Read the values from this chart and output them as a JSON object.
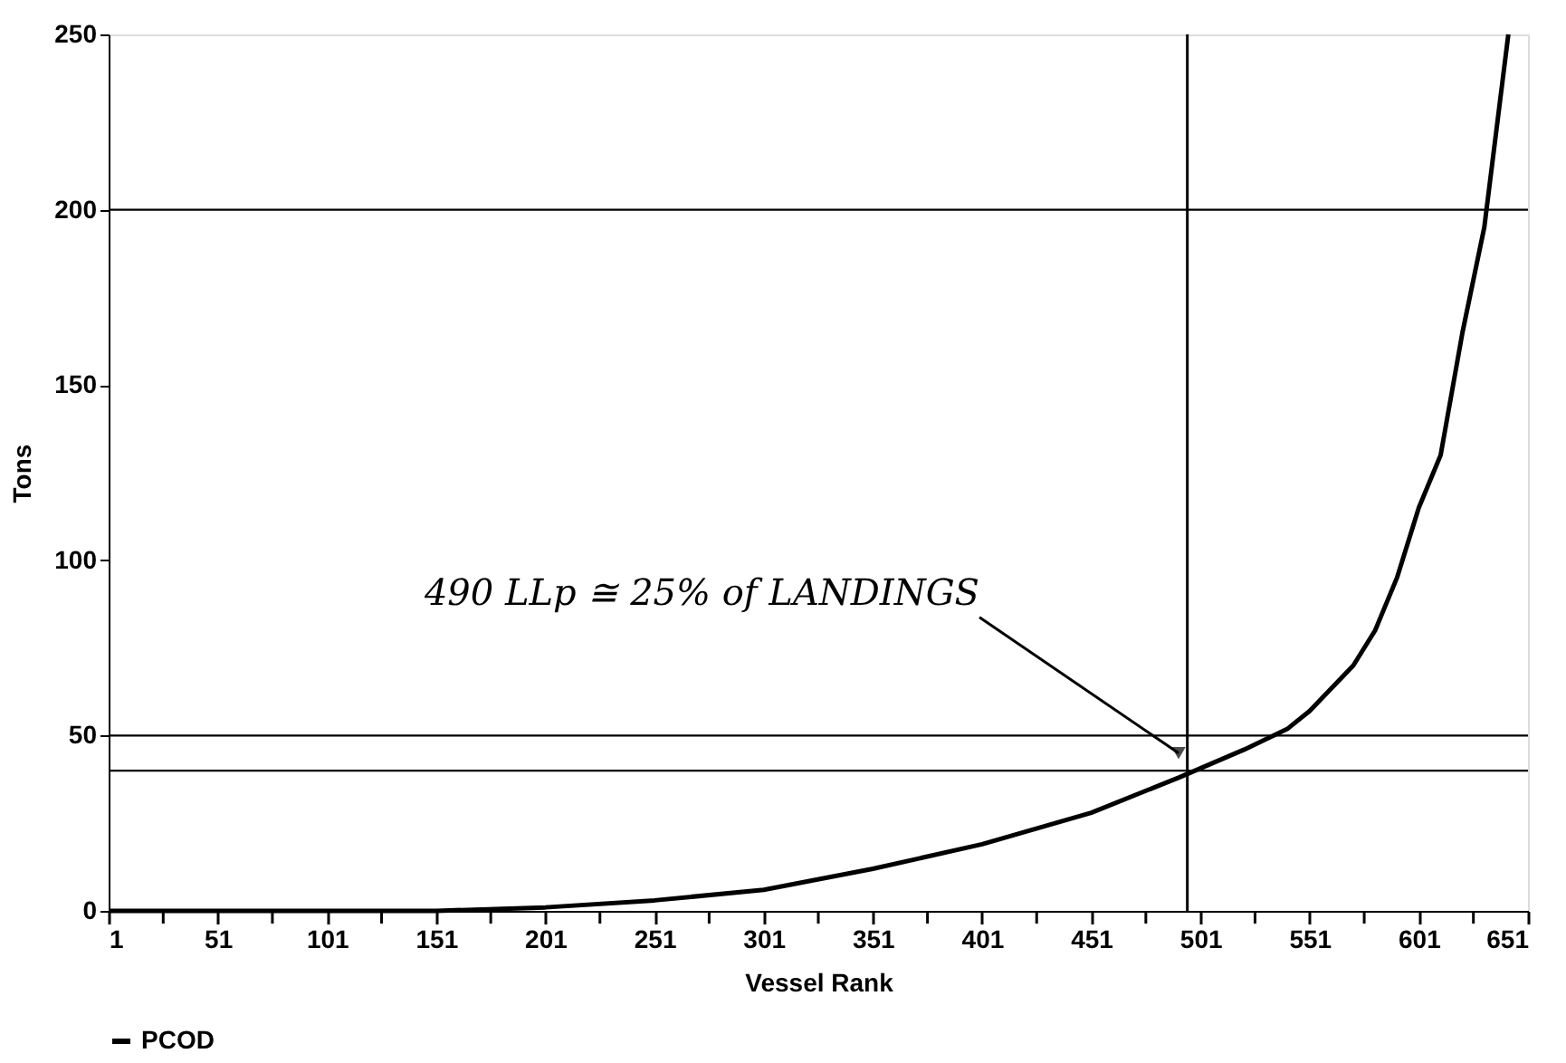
{
  "chart_data": {
    "type": "line",
    "xlabel": "Vessel Rank",
    "ylabel": "Tons",
    "x": [
      1,
      51,
      101,
      151,
      201,
      251,
      301,
      351,
      401,
      451,
      491,
      521,
      541,
      551,
      571,
      581,
      591,
      601,
      611,
      621,
      631,
      637,
      642
    ],
    "series": [
      {
        "name": "PCOD",
        "color": "#000000",
        "values": [
          0,
          0,
          0,
          0,
          1,
          3,
          6,
          12,
          19,
          28,
          38,
          46,
          52,
          57,
          70,
          80,
          95,
          115,
          130,
          165,
          195,
          225,
          250
        ]
      }
    ],
    "xlim": [
      1,
      651
    ],
    "ylim": [
      0,
      250
    ],
    "xticks": [
      1,
      {
        "value": 26,
        "label": null
      },
      51,
      {
        "value": 76,
        "label": null
      },
      101,
      {
        "value": 126,
        "label": null
      },
      151,
      {
        "value": 176,
        "label": null
      },
      201,
      {
        "value": 226,
        "label": null
      },
      251,
      {
        "value": 276,
        "label": null
      },
      301,
      {
        "value": 326,
        "label": null
      },
      351,
      {
        "value": 376,
        "label": null
      },
      401,
      {
        "value": 426,
        "label": null
      },
      451,
      {
        "value": 476,
        "label": null
      },
      501,
      {
        "value": 526,
        "label": null
      },
      551,
      {
        "value": 576,
        "label": null
      },
      601,
      {
        "value": 626,
        "label": null
      },
      651
    ],
    "yticks": [
      0,
      50,
      100,
      150,
      200,
      250
    ],
    "ref_lines": [
      {
        "axis": "y",
        "value": 200
      },
      {
        "axis": "y",
        "value": 50
      },
      {
        "axis": "y",
        "value": 40
      },
      {
        "axis": "x",
        "value": 495
      }
    ],
    "annotations": [
      {
        "text": "490 LLp ≅ 25% of LANDINGS",
        "x": 491,
        "y": 45
      }
    ],
    "legend": "bottom",
    "grid": false,
    "marker": "none",
    "line_style": "solid"
  }
}
